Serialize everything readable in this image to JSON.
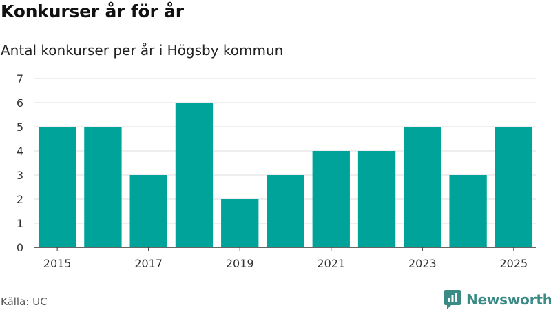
{
  "header": {
    "title": "Konkurser år för år",
    "subtitle": "Antal konkurser per år i Högsby kommun"
  },
  "footer": {
    "source": "Källa: UC",
    "brand": "Newsworthy"
  },
  "colors": {
    "bar": "#00a39a",
    "grid": "#dddddd",
    "axis": "#333333",
    "brand": "#3a8a86"
  },
  "chart_data": {
    "type": "bar",
    "title": "Konkurser år för år",
    "subtitle": "Antal konkurser per år i Högsby kommun",
    "xlabel": "",
    "ylabel": "",
    "categories": [
      "2015",
      "2016",
      "2017",
      "2018",
      "2019",
      "2020",
      "2021",
      "2022",
      "2023",
      "2024",
      "2025"
    ],
    "values": [
      5,
      5,
      3,
      6,
      2,
      3,
      4,
      4,
      5,
      3,
      5
    ],
    "ylim": [
      0,
      7
    ],
    "yticks": [
      "0",
      "1",
      "2",
      "3",
      "4",
      "5",
      "6",
      "7"
    ],
    "xtick_labels": [
      "2015",
      "2017",
      "2019",
      "2021",
      "2023",
      "2025"
    ],
    "grid": true,
    "legend": "none"
  }
}
